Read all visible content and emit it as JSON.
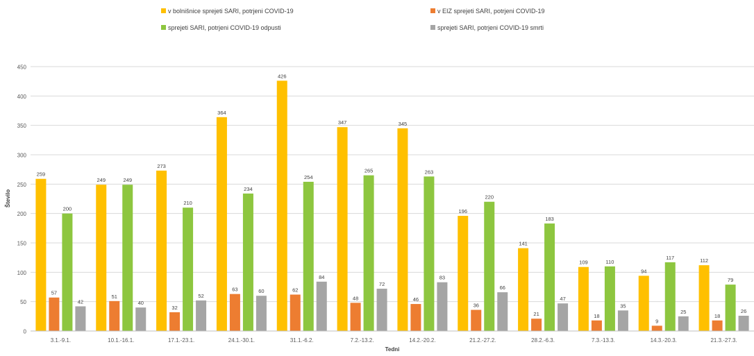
{
  "chart_data": {
    "type": "bar",
    "title": "",
    "xlabel": "Tedni",
    "ylabel": "Število",
    "ylim": [
      0,
      450
    ],
    "yticks": [
      0,
      50,
      100,
      150,
      200,
      250,
      300,
      350,
      400,
      450
    ],
    "grid": true,
    "legend_position": "top",
    "categories": [
      "3.1.-9.1.",
      "10.1.-16.1.",
      "17.1.-23.1.",
      "24.1.-30.1.",
      "31.1.-6.2.",
      "7.2.-13.2.",
      "14.2.-20.2.",
      "21.2.-27.2.",
      "28.2.-6.3.",
      "7.3.-13.3.",
      "14.3.-20.3.",
      "21.3.-27.3."
    ],
    "series": [
      {
        "name": "v bolnišnice sprejeti SARI, potrjeni COVID-19",
        "color": "#FFC000",
        "values": [
          259,
          249,
          273,
          364,
          426,
          347,
          345,
          196,
          141,
          109,
          94,
          112
        ]
      },
      {
        "name": "v EIZ sprejeti SARI, potrjeni COVID-19",
        "color": "#ED7D31",
        "values": [
          57,
          51,
          32,
          63,
          62,
          48,
          46,
          36,
          21,
          18,
          9,
          18
        ]
      },
      {
        "name": "sprejeti SARI, potrjeni COVID-19 odpusti",
        "color": "#8DC63F",
        "values": [
          200,
          249,
          210,
          234,
          254,
          265,
          263,
          220,
          183,
          110,
          117,
          79
        ]
      },
      {
        "name": "sprejeti SARI, potrjeni COVID-19 smrti",
        "color": "#A5A5A5",
        "values": [
          42,
          40,
          52,
          60,
          84,
          72,
          83,
          66,
          47,
          35,
          25,
          26
        ]
      }
    ]
  }
}
